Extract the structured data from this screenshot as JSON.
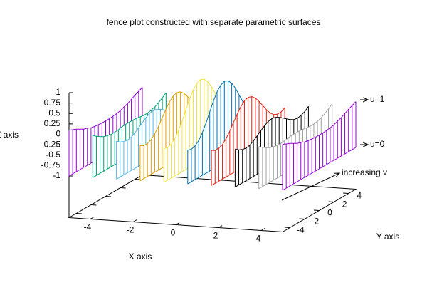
{
  "chart_data": {
    "type": "fence",
    "title": "fence plot constructed with separate parametric surfaces",
    "xlabel": "X axis",
    "ylabel": "Y axis",
    "zlabel": "Z axis",
    "xlim": [
      -5,
      5
    ],
    "ylim": [
      -5,
      5
    ],
    "zlim": [
      -1,
      1
    ],
    "xticks": [
      -4,
      -2,
      0,
      2,
      4
    ],
    "yticks": [
      -4,
      -2,
      0,
      2,
      4
    ],
    "zticks": [
      1,
      0.75,
      0.5,
      0.25,
      0,
      -0.25,
      -0.5,
      -0.75,
      -1
    ],
    "annotations": [
      "u=1",
      "u=0",
      "increasing v"
    ],
    "y": [
      -5,
      -4.5,
      -4,
      -3.5,
      -3,
      -2.5,
      -2,
      -1.5,
      -1,
      -0.5,
      0,
      0.5,
      1,
      1.5,
      2,
      2.5,
      3,
      3.5,
      4,
      4.5,
      5
    ],
    "series": [
      {
        "x": -5,
        "color": "#9400d3",
        "values": [
          0.1,
          0.06,
          0.02,
          -0.03,
          -0.08,
          -0.11,
          -0.15,
          -0.17,
          -0.18,
          -0.19,
          -0.19,
          -0.19,
          -0.18,
          -0.17,
          -0.15,
          -0.11,
          -0.08,
          -0.03,
          0.02,
          0.06,
          0.1
        ]
      },
      {
        "x": -3.89,
        "color": "#009e73",
        "values": [
          0.01,
          -0.06,
          -0.12,
          -0.17,
          -0.2,
          -0.22,
          -0.22,
          -0.21,
          -0.19,
          -0.18,
          -0.18,
          -0.18,
          -0.19,
          -0.21,
          -0.22,
          -0.22,
          -0.2,
          -0.17,
          -0.12,
          -0.06,
          0.01
        ]
      },
      {
        "x": -2.78,
        "color": "#56b4e9",
        "values": [
          -0.09,
          -0.16,
          -0.2,
          -0.22,
          -0.2,
          -0.15,
          -0.08,
          -0.01,
          0.06,
          0.11,
          0.13,
          0.11,
          0.06,
          -0.01,
          -0.08,
          -0.15,
          -0.2,
          -0.22,
          -0.2,
          -0.16,
          -0.09
        ]
      },
      {
        "x": -1.67,
        "color": "#e69f00",
        "values": [
          -0.16,
          -0.21,
          -0.21,
          -0.17,
          -0.08,
          0.05,
          0.2,
          0.35,
          0.48,
          0.57,
          0.6,
          0.57,
          0.48,
          0.35,
          0.2,
          0.05,
          -0.08,
          -0.17,
          -0.21,
          -0.21,
          -0.16
        ]
      },
      {
        "x": -0.56,
        "color": "#f0e442",
        "values": [
          -0.19,
          -0.22,
          -0.19,
          -0.11,
          0.03,
          0.21,
          0.42,
          0.63,
          0.8,
          0.91,
          0.95,
          0.91,
          0.8,
          0.63,
          0.42,
          0.21,
          0.03,
          -0.11,
          -0.19,
          -0.22,
          -0.19
        ]
      },
      {
        "x": 0.56,
        "color": "#0072b2",
        "values": [
          -0.19,
          -0.22,
          -0.19,
          -0.11,
          0.03,
          0.21,
          0.42,
          0.63,
          0.8,
          0.91,
          0.95,
          0.91,
          0.8,
          0.63,
          0.42,
          0.21,
          0.03,
          -0.11,
          -0.19,
          -0.22,
          -0.19
        ]
      },
      {
        "x": 1.67,
        "color": "#e51e10",
        "values": [
          -0.16,
          -0.21,
          -0.21,
          -0.17,
          -0.08,
          0.05,
          0.2,
          0.35,
          0.48,
          0.57,
          0.6,
          0.57,
          0.48,
          0.35,
          0.2,
          0.05,
          -0.08,
          -0.17,
          -0.21,
          -0.21,
          -0.16
        ]
      },
      {
        "x": 2.78,
        "color": "#000000",
        "values": [
          -0.09,
          -0.16,
          -0.2,
          -0.22,
          -0.2,
          -0.15,
          -0.08,
          -0.01,
          0.06,
          0.11,
          0.13,
          0.11,
          0.06,
          -0.01,
          -0.08,
          -0.15,
          -0.2,
          -0.22,
          -0.2,
          -0.16,
          -0.09
        ]
      },
      {
        "x": 3.89,
        "color": "#a0a0a0",
        "values": [
          0.01,
          -0.06,
          -0.12,
          -0.17,
          -0.2,
          -0.22,
          -0.22,
          -0.21,
          -0.19,
          -0.18,
          -0.18,
          -0.18,
          -0.19,
          -0.21,
          -0.22,
          -0.22,
          -0.2,
          -0.17,
          -0.12,
          -0.06,
          0.01
        ]
      },
      {
        "x": 5,
        "color": "#9400d3",
        "values": [
          0.1,
          0.06,
          0.02,
          -0.03,
          -0.08,
          -0.11,
          -0.15,
          -0.17,
          -0.18,
          -0.19,
          -0.19,
          -0.19,
          -0.18,
          -0.17,
          -0.15,
          -0.11,
          -0.08,
          -0.03,
          0.02,
          0.06,
          0.1
        ]
      }
    ]
  }
}
